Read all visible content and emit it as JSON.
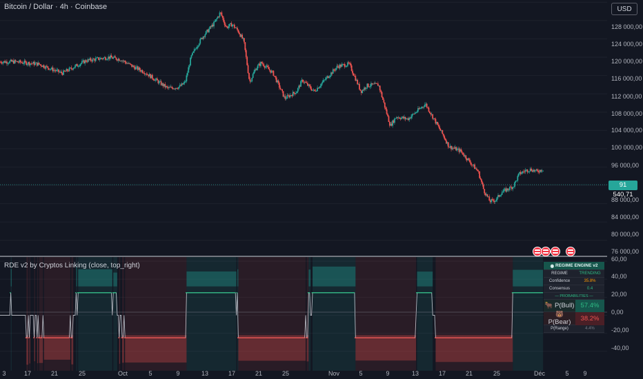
{
  "header": {
    "title": "Bitcoin / Dollar · 4h · Coinbase",
    "currency_button": "USD"
  },
  "indicator": {
    "title": "RDE v2 by Cryptos Linking (close, top_right)"
  },
  "price_axis": {
    "ticks": [
      "128 000,00",
      "124 000,00",
      "120 000,00",
      "116 000,00",
      "112 000,00",
      "108 000,00",
      "104 000,00",
      "100 000,00",
      "96 000,00",
      "88 000,00",
      "84 000,00",
      "80 000,00",
      "76 000,00"
    ],
    "last_price": "91 540,71"
  },
  "osc_axis": {
    "ticks": [
      "60,00",
      "40,00",
      "20,00",
      "0,00",
      "-20,00",
      "-40,00"
    ]
  },
  "time_axis": {
    "ticks": [
      "3",
      "17",
      "21",
      "25",
      "Oct",
      "5",
      "9",
      "13",
      "17",
      "21",
      "25",
      "Nov",
      "5",
      "9",
      "13",
      "17",
      "21",
      "25",
      "Déc",
      "5",
      "9"
    ]
  },
  "regime_table": {
    "title": "REGIME ENGINE v2",
    "regime_label": "REGIME",
    "regime_value": "TRENDING",
    "confidence_label": "Confidence",
    "confidence_value": "35.8%",
    "consensus_label": "Consensus",
    "consensus_value": "0.4",
    "probabilities_label": "— PROBABILITIES —",
    "bull_label": "P(Bull)",
    "bull_value": "57.4%",
    "bear_label": "P(Bear)",
    "bear_value": "38.2%",
    "range_label": "P(Range)",
    "range_value": "4.4%"
  },
  "colors": {
    "background": "#131722",
    "bull": "#26a69a",
    "bear": "#ef5350",
    "grid": "#1e222d"
  },
  "chart_data": {
    "type": "candlestick",
    "ylim": [
      74000,
      130000
    ],
    "x_range": [
      "Sep 1",
      "Dec 11"
    ],
    "close_path": [
      [
        "Sep 1",
        115000
      ],
      [
        "Sep 5",
        114500
      ],
      [
        "Sep 9",
        112500
      ],
      [
        "Sep 13",
        115200
      ],
      [
        "Sep 17",
        116000
      ],
      [
        "Sep 19",
        115500
      ],
      [
        "Sep 21",
        114000
      ],
      [
        "Sep 23",
        112800
      ],
      [
        "Sep 25",
        111000
      ],
      [
        "Sep 27",
        109200
      ],
      [
        "Sep 29",
        109500
      ],
      [
        "Sep 30",
        110500
      ],
      [
        "Oct 1",
        116000
      ],
      [
        "Oct 2",
        118500
      ],
      [
        "Oct 3",
        120500
      ],
      [
        "Oct 5",
        123500
      ],
      [
        "Oct 6",
        125800
      ],
      [
        "Oct 7",
        122500
      ],
      [
        "Oct 8",
        123200
      ],
      [
        "Oct 9",
        121800
      ],
      [
        "Oct 10",
        119500
      ],
      [
        "Oct 11",
        110500
      ],
      [
        "Oct 12",
        113500
      ],
      [
        "Oct 13",
        114800
      ],
      [
        "Oct 15",
        112500
      ],
      [
        "Oct 17",
        107000
      ],
      [
        "Oct 19",
        108500
      ],
      [
        "Oct 20",
        111000
      ],
      [
        "Oct 22",
        108500
      ],
      [
        "Oct 24",
        111300
      ],
      [
        "Oct 26",
        114000
      ],
      [
        "Oct 28",
        114500
      ],
      [
        "Oct 30",
        108500
      ],
      [
        "Oct 31",
        109800
      ],
      [
        "Nov 2",
        110000
      ],
      [
        "Nov 4",
        101000
      ],
      [
        "Nov 5",
        103000
      ],
      [
        "Nov 7",
        102500
      ],
      [
        "Nov 10",
        105800
      ],
      [
        "Nov 11",
        103500
      ],
      [
        "Nov 13",
        99000
      ],
      [
        "Nov 14",
        96500
      ],
      [
        "Nov 16",
        95500
      ],
      [
        "Nov 18",
        92500
      ],
      [
        "Nov 19",
        91000
      ],
      [
        "Nov 20",
        86800
      ],
      [
        "Nov 21",
        84500
      ],
      [
        "Nov 22",
        84800
      ],
      [
        "Nov 23",
        86500
      ],
      [
        "Nov 25",
        87800
      ],
      [
        "Nov 26",
        90500
      ],
      [
        "Nov 27",
        91200
      ],
      [
        "Nov 28",
        91500
      ],
      [
        "Nov 29",
        91000
      ],
      [
        "Nov 30",
        91540.71
      ]
    ],
    "oscillator": {
      "ylim": [
        -60,
        60
      ],
      "bull_level": 25,
      "bear_level": -25,
      "band_upper_range": [
        32,
        55
      ],
      "band_lower_range": [
        -22,
        -55
      ]
    }
  }
}
